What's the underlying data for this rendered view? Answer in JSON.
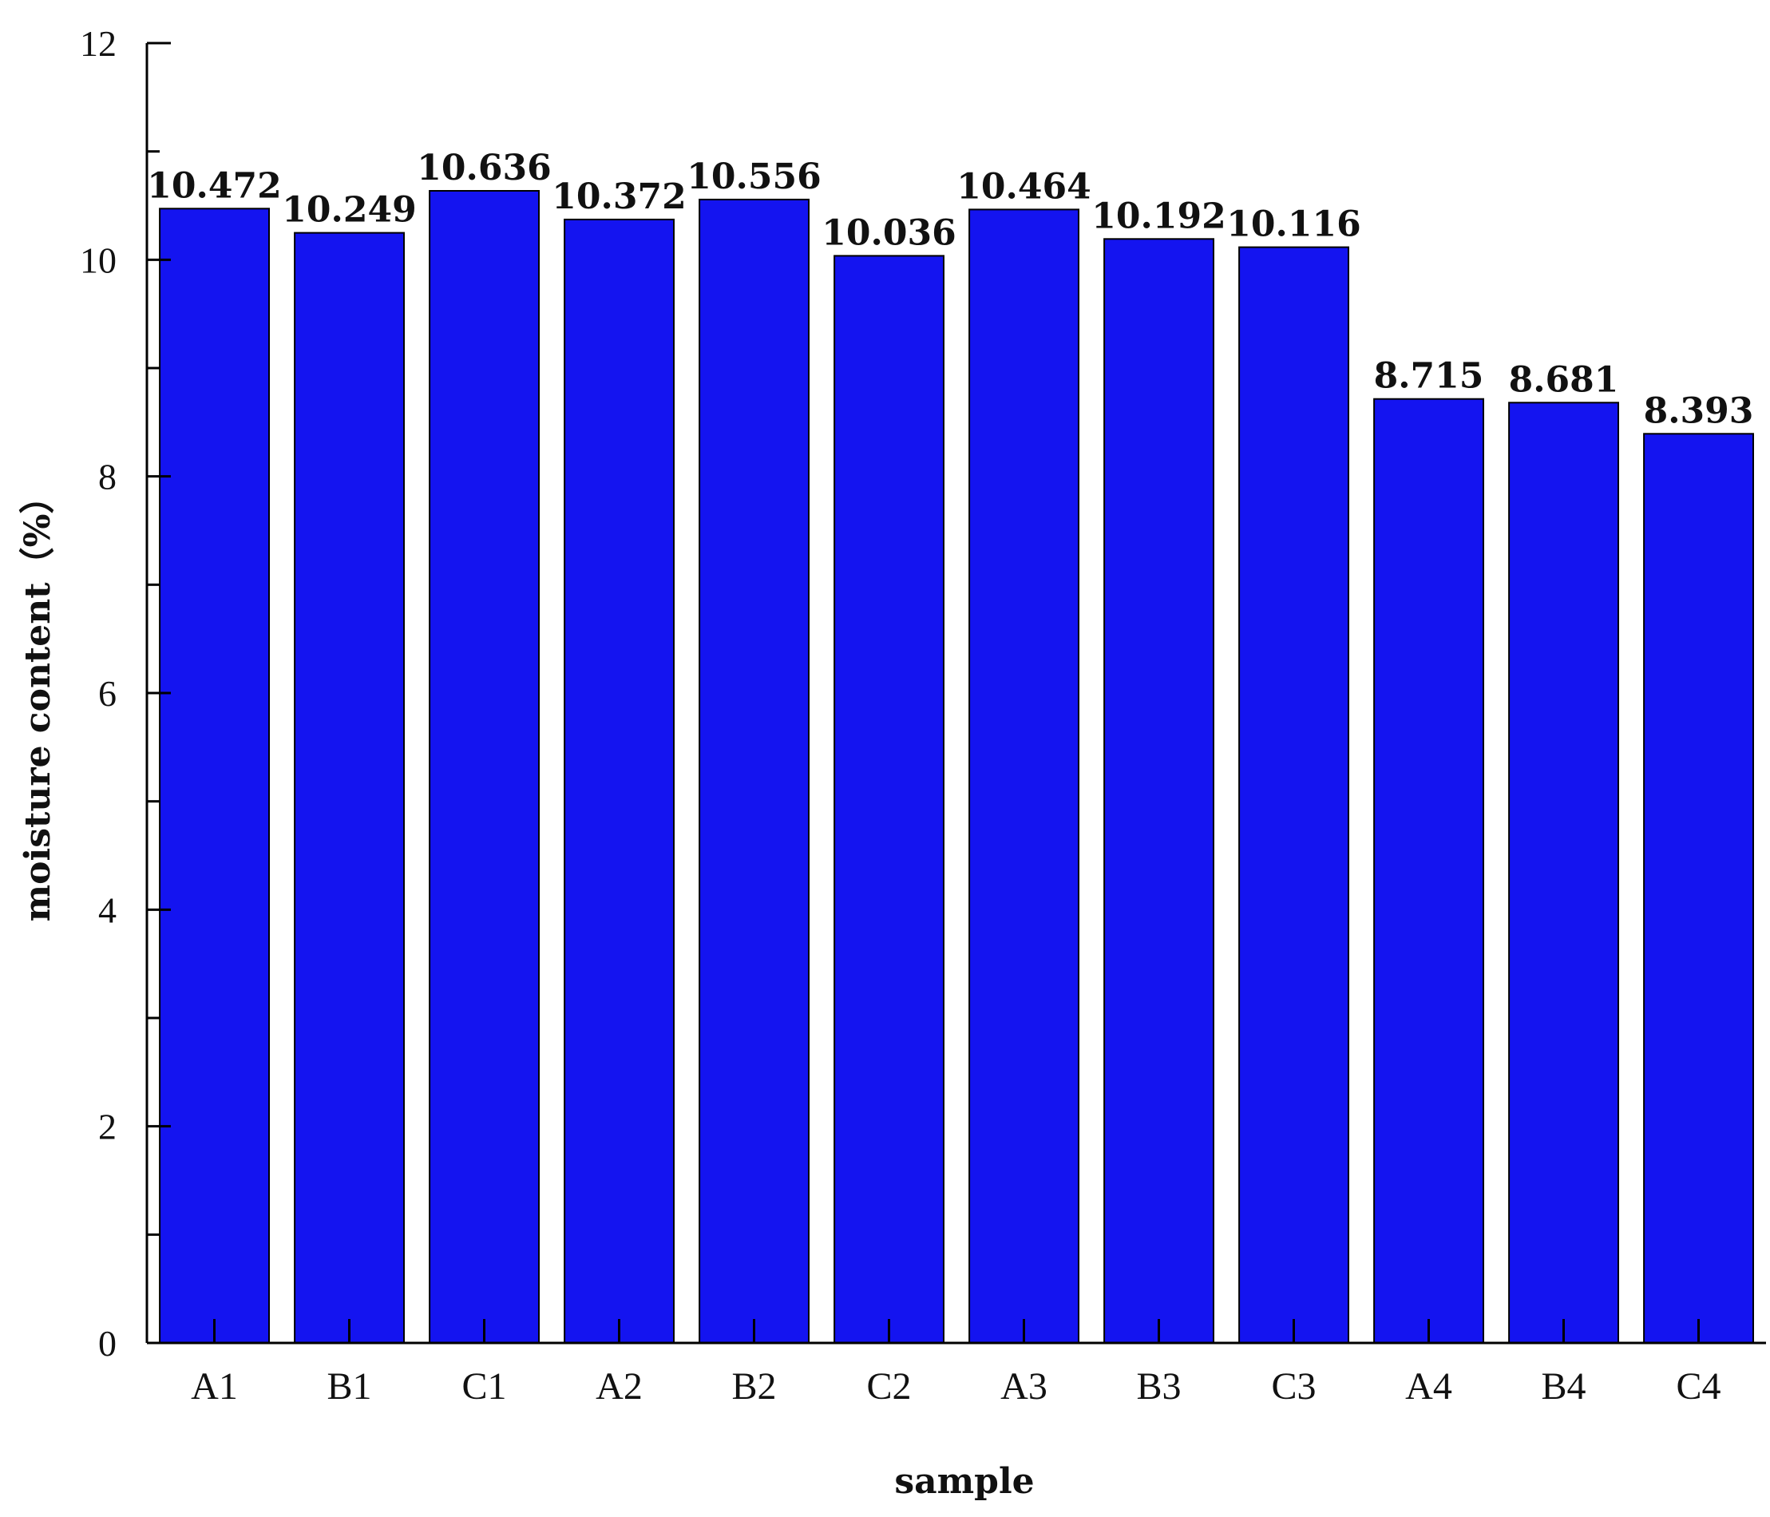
{
  "chart_data": {
    "type": "bar",
    "categories": [
      "A1",
      "B1",
      "C1",
      "A2",
      "B2",
      "C2",
      "A3",
      "B3",
      "C3",
      "A4",
      "B4",
      "C4"
    ],
    "values": [
      10.472,
      10.249,
      10.636,
      10.372,
      10.556,
      10.036,
      10.464,
      10.192,
      10.116,
      8.715,
      8.681,
      8.393
    ],
    "value_labels": [
      "10.472",
      "10.249",
      "10.636",
      "10.372",
      "10.556",
      "10.036",
      "10.464",
      "10.192",
      "10.116",
      "8.715",
      "8.681",
      "8.393"
    ],
    "xlabel": "sample",
    "ylabel": "moisture content（%）",
    "ylim": [
      0,
      12
    ],
    "yticks": [
      0,
      2,
      4,
      6,
      8,
      10,
      12
    ],
    "grid": false,
    "bar_color": "#1414f0",
    "bar_edge_color": "#000000"
  }
}
